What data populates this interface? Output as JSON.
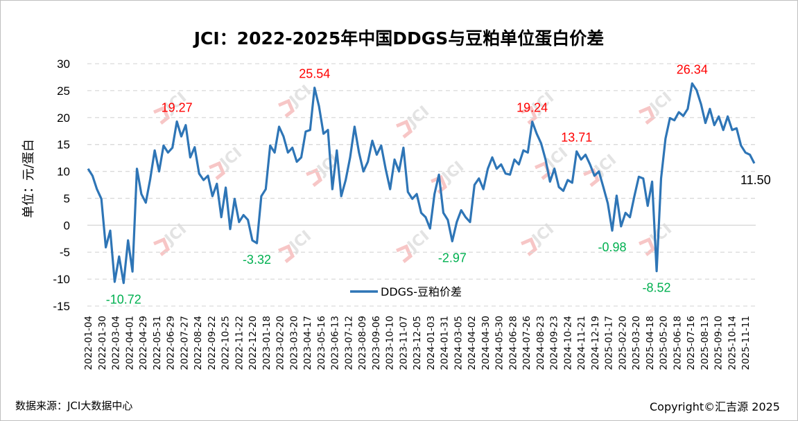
{
  "title": "JCI：2022-2025年中国DDGS与豆粕单位蛋白价差",
  "footer": {
    "source": "数据来源：JCI大数据中心",
    "copyright": "Copyright©汇吉源 2025"
  },
  "watermark": "JCI",
  "chart_data": {
    "type": "line",
    "title": "JCI：2022-2025年中国DDGS与豆粕单位蛋白价差",
    "ylabel": "单位：元/蛋白",
    "xlabel": "",
    "ylim": [
      -15,
      30
    ],
    "yticks": [
      30,
      25,
      20,
      15,
      10,
      5,
      0,
      -5,
      -10,
      -15
    ],
    "grid": "horizontal dashed",
    "legend_position": "bottom-center",
    "x_ticks": [
      "2022-01-04",
      "2022-01-30",
      "2022-03-04",
      "2022-04-01",
      "2022-04-29",
      "2022-05-31",
      "2022-06-29",
      "2022-07-27",
      "2022-08-24",
      "2022-09-22",
      "2022-10-25",
      "2022-11-22",
      "2022-12-20",
      "2023-01-18",
      "2023-02-20",
      "2023-03-20",
      "2023-04-17",
      "2023-05-16",
      "2023-06-13",
      "2023-07-12",
      "2023-08-09",
      "2023-09-06",
      "2023-10-10",
      "2023-11-07",
      "2023-12-05",
      "2024-01-03",
      "2024-01-31",
      "2024-03-05",
      "2024-04-02",
      "2024-04-30",
      "2024-05-30",
      "2024-06-28",
      "2024-07-26",
      "2024-08-23",
      "2024-09-23",
      "2024-10-24",
      "2024-11-21",
      "2024-12-19",
      "2025-01-17",
      "2025-02-20",
      "2025-03-20",
      "2025-04-18",
      "2025-05-20",
      "2025-06-18",
      "2025-07-16",
      "2025-08-13",
      "2025-09-10",
      "2025-10-14",
      "2025-11-11"
    ],
    "series": [
      {
        "name": "DDGS-豆粕价差",
        "color": "#2e75b6",
        "values": [
          10.5,
          9.2,
          6.7,
          4.9,
          -4.1,
          -1,
          -10.5,
          -5.8,
          -10.72,
          -2.8,
          -8.6,
          10.5,
          5.8,
          4.2,
          8.6,
          13.9,
          10,
          14.8,
          13.5,
          14.4,
          19.27,
          16.5,
          18.6,
          12.6,
          14.5,
          9.6,
          8.4,
          9.2,
          5.4,
          7.7,
          1.5,
          7,
          -0.7,
          4.9,
          0.6,
          1.9,
          1,
          -2.8,
          -3.32,
          5.4,
          6.7,
          14.8,
          13.5,
          18.3,
          16.5,
          13.5,
          14.4,
          11.8,
          12.6,
          17.4,
          17.7,
          25.54,
          22.1,
          17,
          17.7,
          6.7,
          13.9,
          5.4,
          8.4,
          12.6,
          18.3,
          13.5,
          10,
          11.8,
          15.7,
          13.1,
          14.8,
          10.5,
          6.7,
          12.2,
          10,
          14.4,
          6.2,
          4.9,
          5.8,
          2.3,
          1.5,
          -0.6,
          5.8,
          9.4,
          2.3,
          1,
          -2.97,
          0.6,
          2.8,
          1.5,
          0.6,
          7.5,
          8.7,
          6.7,
          10.5,
          12.6,
          10.5,
          11.3,
          9.6,
          9.4,
          12.2,
          11.3,
          13.9,
          13.5,
          19.24,
          17,
          15.2,
          12.2,
          8.1,
          10.5,
          7.1,
          6.4,
          8.4,
          7.9,
          13.71,
          12.2,
          13.1,
          11.3,
          9.2,
          10,
          7.1,
          4.1,
          -0.98,
          5.5,
          -0.2,
          2.3,
          1.5,
          5.4,
          9,
          8.7,
          3.6,
          8.1,
          -8.52,
          8.7,
          16.1,
          19.9,
          19.5,
          21,
          20.3,
          21.6,
          26.34,
          25.1,
          22.5,
          19,
          21.6,
          18.6,
          20.2,
          17.7,
          20.2,
          17.7,
          18,
          14.8,
          13.5,
          13.1,
          11.5
        ]
      }
    ],
    "annotations": [
      {
        "text": "-10.72",
        "value": -10.72,
        "color": "#00b050",
        "pos": "below"
      },
      {
        "text": "19.27",
        "value": 19.27,
        "color": "#ff0000",
        "pos": "above"
      },
      {
        "text": "-3.32",
        "value": -3.32,
        "color": "#00b050",
        "pos": "below"
      },
      {
        "text": "25.54",
        "value": 25.54,
        "color": "#ff0000",
        "pos": "above"
      },
      {
        "text": "-2.97",
        "value": -2.97,
        "color": "#00b050",
        "pos": "below"
      },
      {
        "text": "19.24",
        "value": 19.24,
        "color": "#ff0000",
        "pos": "above"
      },
      {
        "text": "13.71",
        "value": 13.71,
        "color": "#ff0000",
        "pos": "above"
      },
      {
        "text": "-0.98",
        "value": -0.98,
        "color": "#00b050",
        "pos": "below"
      },
      {
        "text": "-8.52",
        "value": -8.52,
        "color": "#00b050",
        "pos": "below"
      },
      {
        "text": "26.34",
        "value": 26.34,
        "color": "#ff0000",
        "pos": "above"
      },
      {
        "text": "11.50",
        "value": 11.5,
        "color": "#000000",
        "pos": "below-right"
      }
    ]
  }
}
